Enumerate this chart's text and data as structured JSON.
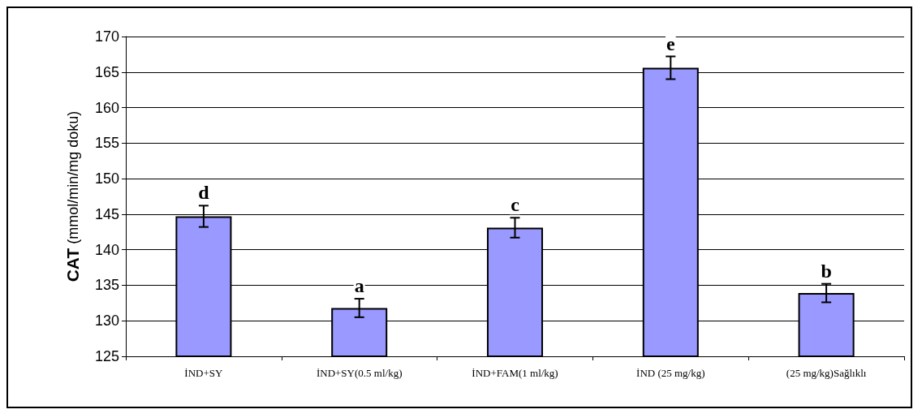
{
  "chart_data": {
    "type": "bar",
    "ylabel": "CAT (mmol/min/mg doku)",
    "categories": [
      "İND+SY",
      "İND+SY(0.5 ml/kg)",
      "İND+FAM(1 ml/kg)",
      "İND (25 mg/kg)",
      "(25 mg/kg)Sağlıklı"
    ],
    "values": [
      144.7,
      131.8,
      143.1,
      165.6,
      133.9
    ],
    "errors": [
      1.5,
      1.3,
      1.4,
      1.6,
      1.3
    ],
    "color": "#9999ff",
    "ylim": [
      125,
      170
    ],
    "yticks": [
      125,
      130,
      135,
      140,
      145,
      150,
      155,
      160,
      165,
      170
    ],
    "grid": "y",
    "annotations": [
      {
        "text": "d",
        "x": "İND+SY",
        "y": 144.7
      },
      {
        "text": "a",
        "x": "İND+SY(0.5 ml/kg)",
        "y": 131.8
      },
      {
        "text": "c",
        "x": "İND+FAM(1 ml/kg)",
        "y": 143.1
      },
      {
        "text": "e",
        "x": "İND (25 mg/kg)",
        "y": 165.6
      },
      {
        "text": "b",
        "x": "(25 mg/kg)Sağlıklı",
        "y": 133.9
      }
    ]
  }
}
